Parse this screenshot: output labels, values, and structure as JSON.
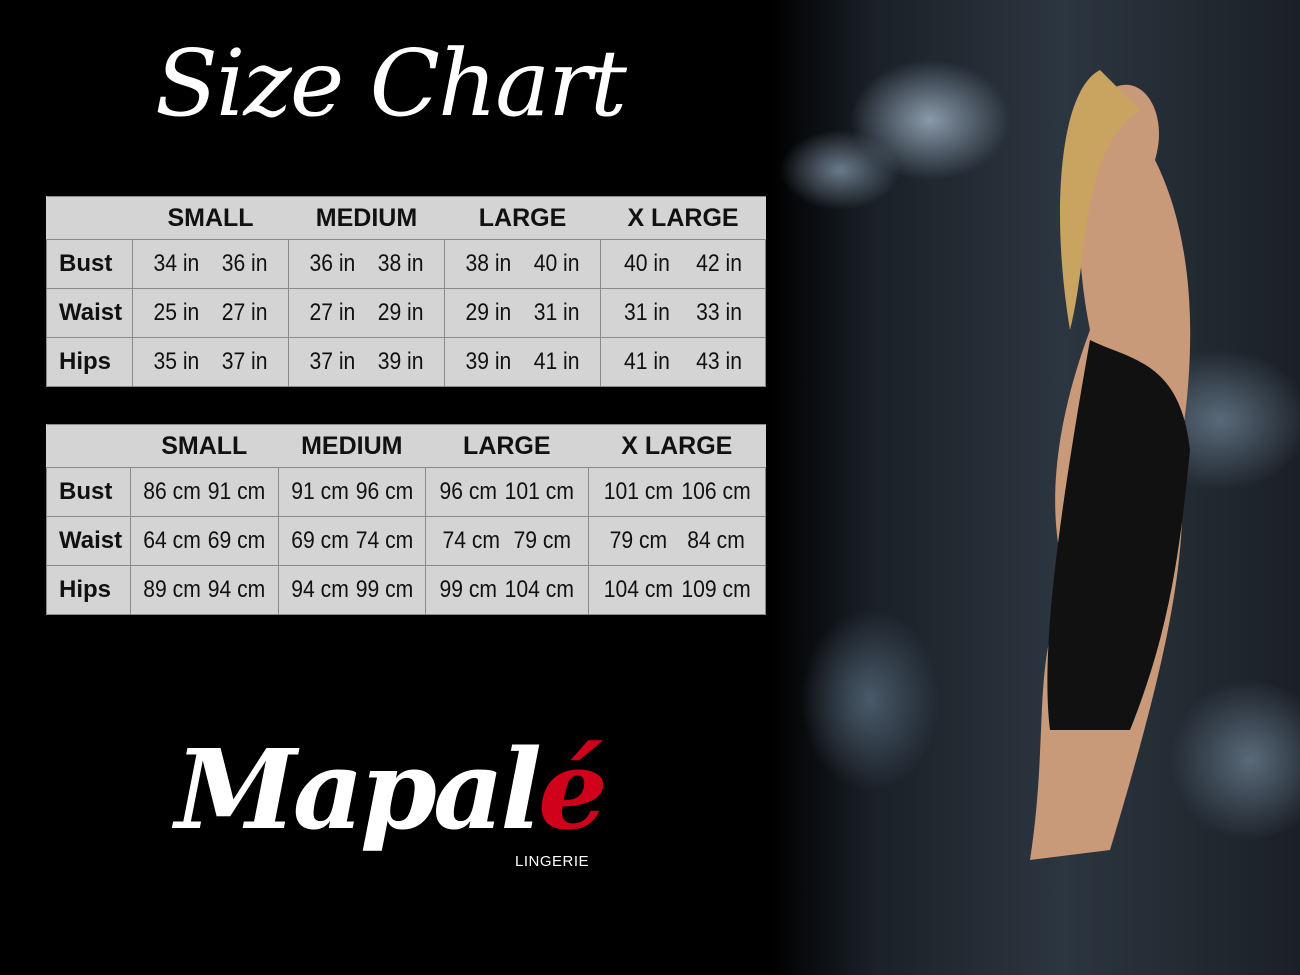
{
  "title": "Size Chart",
  "sizes": [
    "SMALL",
    "MEDIUM",
    "LARGE",
    "X LARGE"
  ],
  "inches": [
    {
      "label": "Bust",
      "values": [
        "34 in",
        "36 in",
        "36 in",
        "38 in",
        "38 in",
        "40 in",
        "40 in",
        "42 in"
      ]
    },
    {
      "label": "Waist",
      "values": [
        "25 in",
        "27 in",
        "27 in",
        "29 in",
        "29 in",
        "31 in",
        "31 in",
        "33 in"
      ]
    },
    {
      "label": "Hips",
      "values": [
        "35 in",
        "37 in",
        "37 in",
        "39 in",
        "39 in",
        "41 in",
        "41 in",
        "43 in"
      ]
    }
  ],
  "cm": [
    {
      "label": "Bust",
      "values": [
        "86 cm",
        "91 cm",
        "91 cm",
        "96 cm",
        "96 cm",
        "101 cm",
        "101 cm",
        "106 cm"
      ]
    },
    {
      "label": "Waist",
      "values": [
        "64 cm",
        "69 cm",
        "69 cm",
        "74 cm",
        "74 cm",
        "79 cm",
        "79 cm",
        "84 cm"
      ]
    },
    {
      "label": "Hips",
      "values": [
        "89 cm",
        "94 cm",
        "94 cm",
        "99 cm",
        "99 cm",
        "104 cm",
        "104 cm",
        "109 cm"
      ]
    }
  ],
  "brand": {
    "name_main": "Mapal",
    "name_accent": "é",
    "subtitle": "LINGERIE",
    "accent_color": "#d0021b"
  }
}
